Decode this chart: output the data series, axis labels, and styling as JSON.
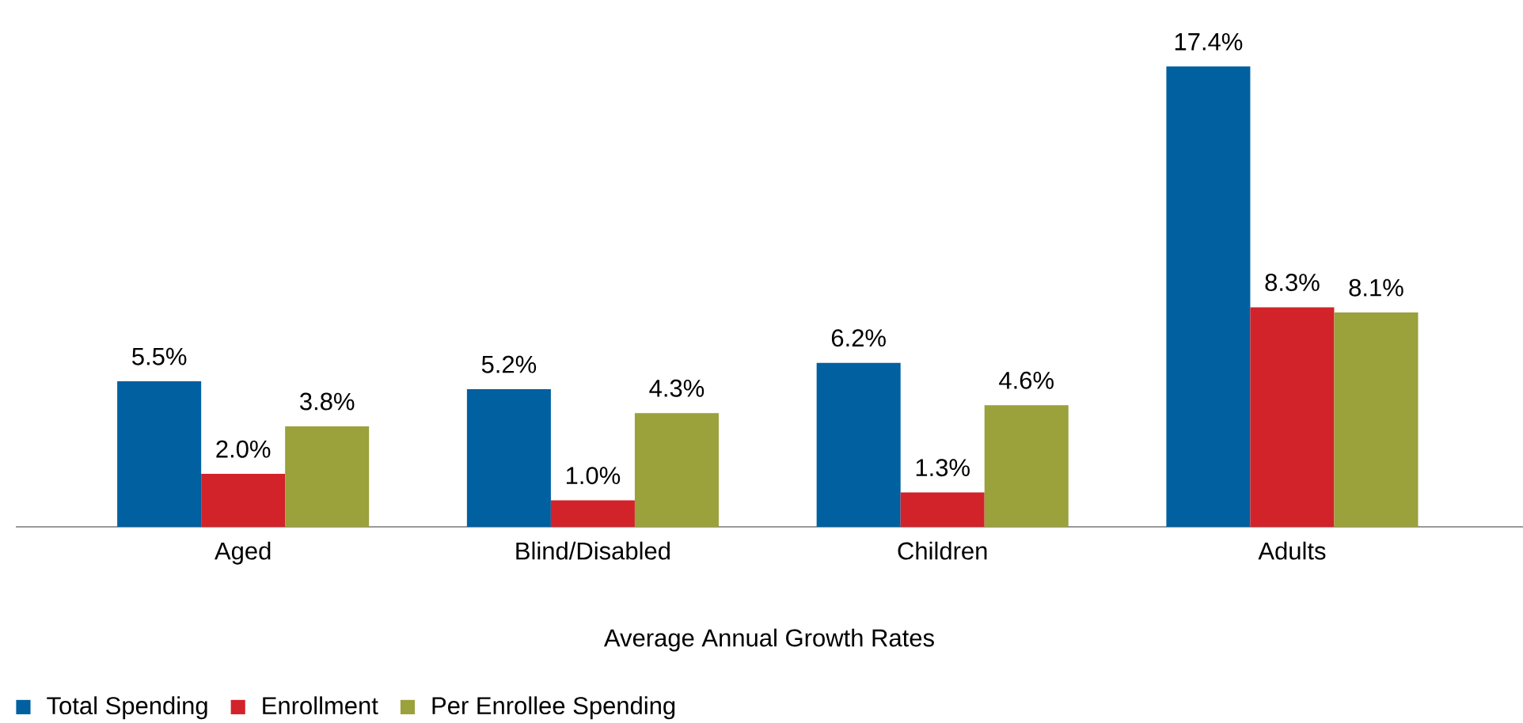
{
  "chart_data": {
    "type": "bar",
    "xlabel": "Average Annual Growth Rates",
    "categories": [
      "Aged",
      "Blind/Disabled",
      "Children",
      "Adults"
    ],
    "series": [
      {
        "name": "Total Spending",
        "color": "#0060a0",
        "values": [
          5.5,
          5.2,
          6.2,
          17.4
        ],
        "value_labels": [
          "5.5%",
          "5.2%",
          "6.2%",
          "17.4%"
        ]
      },
      {
        "name": "Enrollment",
        "color": "#d2232a",
        "values": [
          2.0,
          1.0,
          1.3,
          8.3
        ],
        "value_labels": [
          "2.0%",
          "1.0%",
          "1.3%",
          "8.3%"
        ]
      },
      {
        "name": "Per Enrollee Spending",
        "color": "#9ba13b",
        "values": [
          3.8,
          4.3,
          4.6,
          8.1
        ],
        "value_labels": [
          "3.8%",
          "4.3%",
          "4.6%",
          "8.1%"
        ]
      }
    ],
    "legend": "bottom left"
  }
}
